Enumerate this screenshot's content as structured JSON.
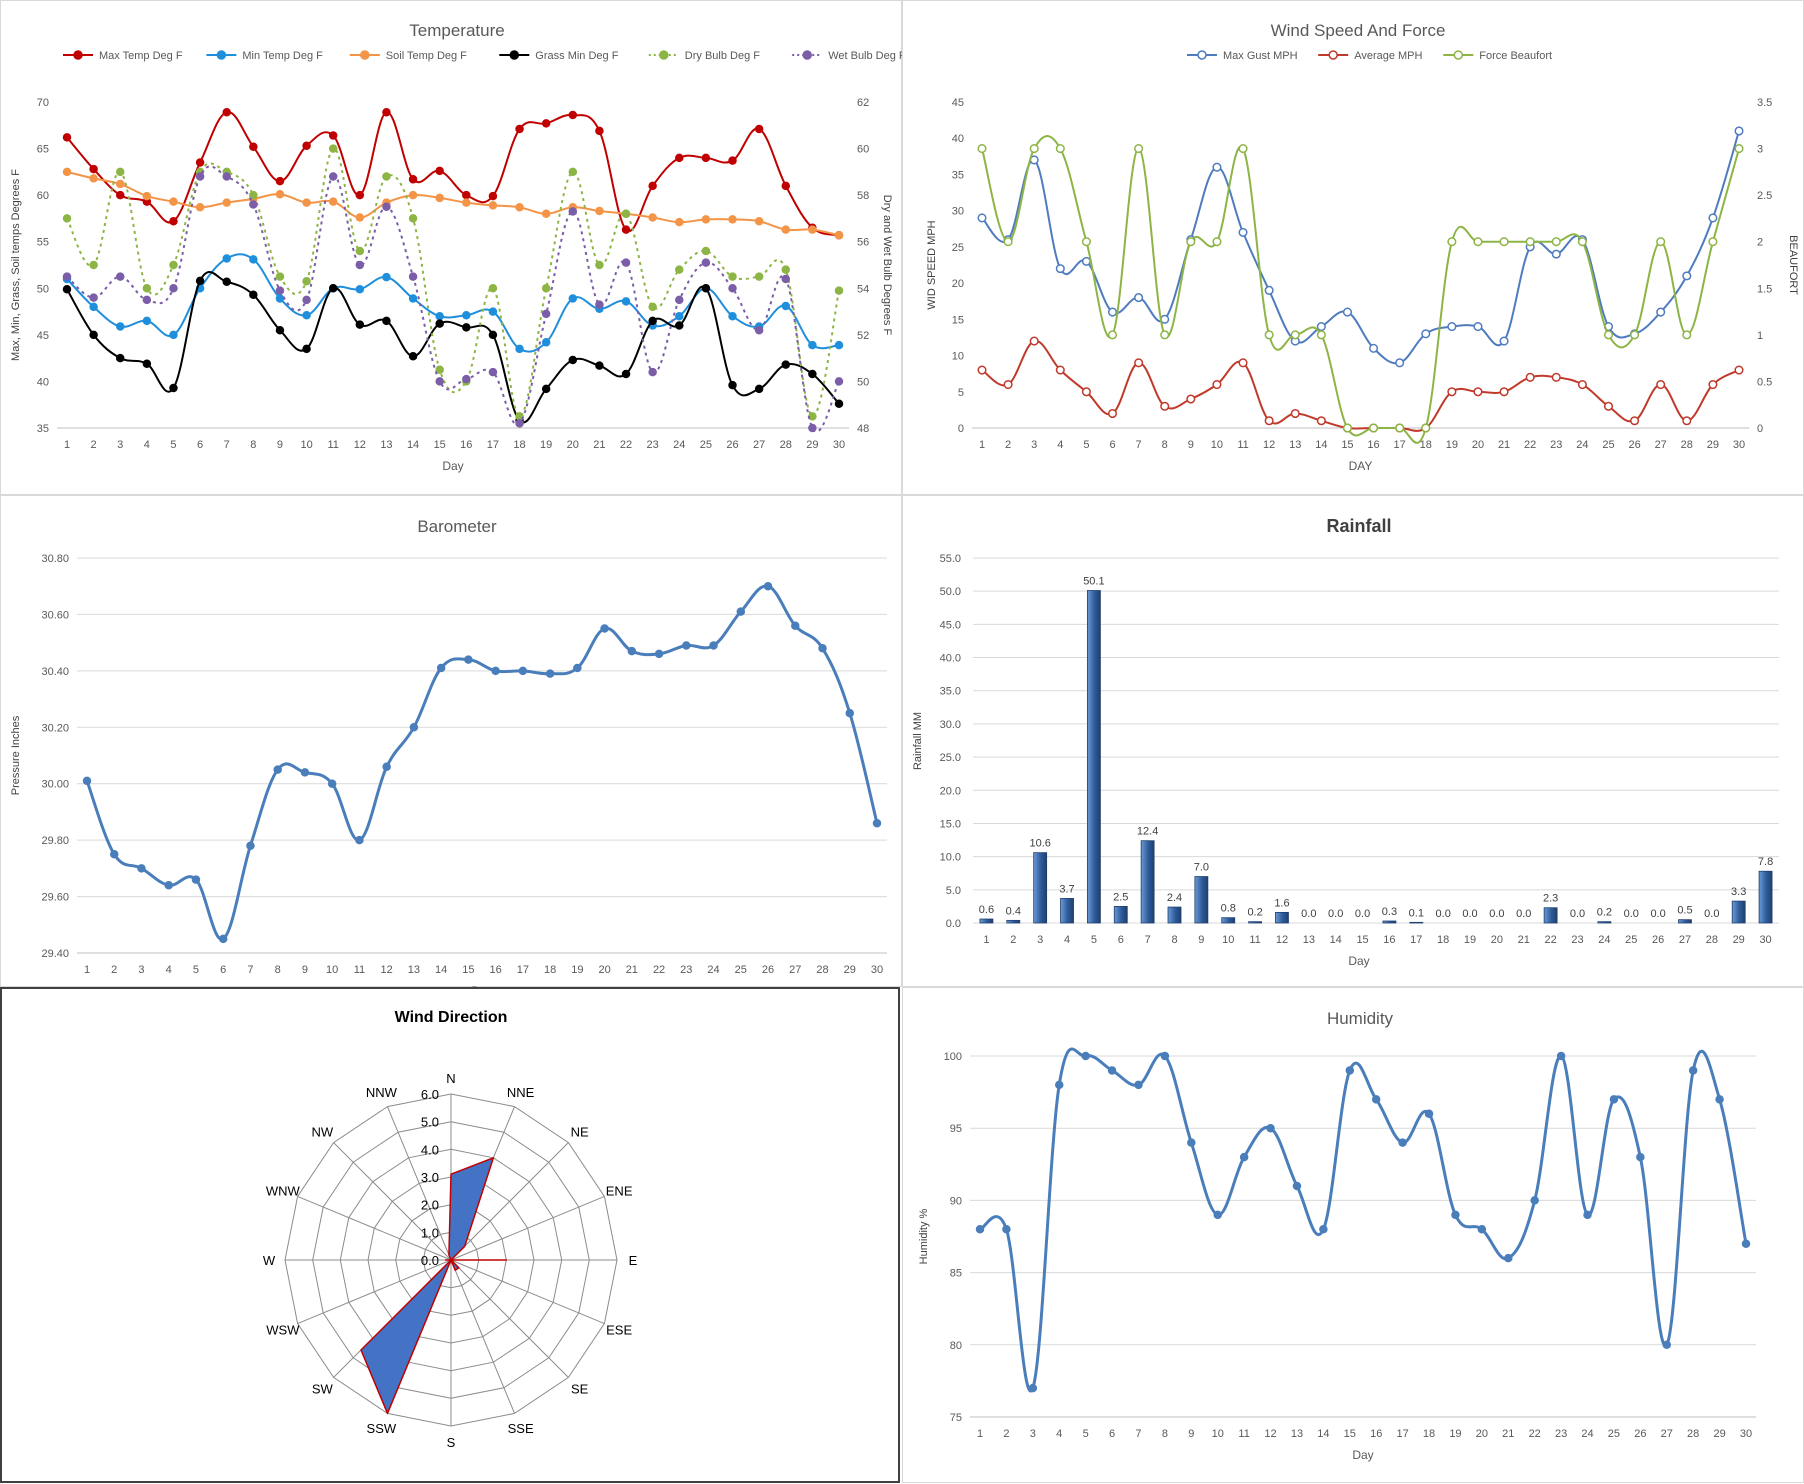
{
  "colors": {
    "max_temp": "#c00000",
    "min_temp": "#1f8fdc",
    "soil_temp": "#f39447",
    "grass_min": "#000000",
    "dry_bulb": "#8db545",
    "wet_bulb": "#7b5ea7",
    "gust": "#4f7bbf",
    "avg": "#c0392b",
    "beaufort": "#8db545",
    "baro": "#4a7ebb",
    "rain": "#2e5c9a",
    "humidity": "#4a7ebb",
    "rose_fill": "#4472c4",
    "rose_stroke": "#c00000",
    "grid": "#d9d9d9"
  },
  "chart_data": [
    {
      "id": "temperature",
      "type": "line",
      "title": "Temperature",
      "xlabel": "Day",
      "ylabel": "Max, Min, Grass, Soil temps Degrees F",
      "y2label": "Dry and Wet Bulb Degrees F",
      "ylim": [
        35,
        70
      ],
      "y_step": 5,
      "y2lim": [
        48,
        62
      ],
      "y2_step": 2,
      "grid": false,
      "legend": "top",
      "x": [
        1,
        2,
        3,
        4,
        5,
        6,
        7,
        8,
        9,
        10,
        11,
        12,
        13,
        14,
        15,
        16,
        17,
        18,
        19,
        20,
        21,
        22,
        23,
        24,
        25,
        26,
        27,
        28,
        29,
        30
      ],
      "series": [
        {
          "name": "Max Temp Deg F",
          "axis": "y",
          "style": "solid",
          "color_key": "max_temp",
          "values": [
            66.2,
            62.8,
            60.0,
            59.3,
            57.2,
            63.5,
            68.9,
            65.2,
            61.5,
            65.3,
            66.4,
            60.0,
            68.9,
            61.7,
            62.6,
            60.0,
            59.9,
            67.1,
            67.7,
            68.6,
            66.9,
            56.3,
            61.0,
            64.0,
            64.0,
            63.7,
            67.1,
            61.0,
            56.5,
            55.7
          ]
        },
        {
          "name": "Min Temp Deg F",
          "axis": "y",
          "style": "solid",
          "color_key": "min_temp",
          "values": [
            51.0,
            48.0,
            45.9,
            46.5,
            45.0,
            50.0,
            53.2,
            53.1,
            48.9,
            47.1,
            50.0,
            49.9,
            51.2,
            48.9,
            47.0,
            47.1,
            47.5,
            43.5,
            44.2,
            48.9,
            47.8,
            48.6,
            46.0,
            47.0,
            50.0,
            47.0,
            45.9,
            48.1,
            43.9,
            43.9
          ]
        },
        {
          "name": "Soil Temp Deg F",
          "axis": "y",
          "style": "solid",
          "color_key": "soil_temp",
          "values": [
            62.5,
            61.8,
            61.2,
            59.9,
            59.3,
            58.7,
            59.2,
            59.6,
            60.1,
            59.2,
            59.3,
            57.6,
            59.2,
            60.0,
            59.7,
            59.2,
            58.9,
            58.7,
            58.0,
            58.7,
            58.3,
            58.0,
            57.6,
            57.1,
            57.4,
            57.4,
            57.2,
            56.3,
            56.3,
            55.7
          ]
        },
        {
          "name": "Grass Min Deg F",
          "axis": "y",
          "style": "solid",
          "color_key": "grass_min",
          "values": [
            49.9,
            45.0,
            42.5,
            41.9,
            39.3,
            50.8,
            50.7,
            49.3,
            45.5,
            43.5,
            50.0,
            46.1,
            46.5,
            42.7,
            46.2,
            45.8,
            45.0,
            35.8,
            39.2,
            42.3,
            41.7,
            40.8,
            46.5,
            46.0,
            50.0,
            39.6,
            39.2,
            41.8,
            40.8,
            37.6
          ]
        },
        {
          "name": "Dry Bulb Deg F",
          "axis": "y2",
          "style": "dotted",
          "color_key": "dry_bulb",
          "values": [
            57.0,
            55.0,
            59.0,
            54.0,
            55.0,
            59.0,
            59.0,
            58.0,
            54.5,
            54.3,
            60.0,
            55.6,
            58.8,
            57.0,
            50.5,
            50.0,
            54.0,
            48.5,
            54.0,
            59.0,
            55.0,
            57.2,
            53.2,
            54.8,
            55.6,
            54.5,
            54.5,
            54.8,
            48.5,
            53.9
          ]
        },
        {
          "name": "Wet Bulb Deg F",
          "axis": "y2",
          "style": "dotted",
          "color_key": "wet_bulb",
          "values": [
            54.5,
            53.6,
            54.5,
            53.5,
            54.0,
            58.8,
            58.8,
            57.6,
            53.9,
            53.5,
            58.8,
            55.0,
            57.5,
            54.5,
            50.0,
            50.1,
            50.4,
            48.2,
            52.9,
            57.3,
            53.3,
            55.1,
            50.4,
            53.5,
            55.1,
            54.0,
            52.2,
            54.4,
            48.0,
            50.0
          ]
        }
      ]
    },
    {
      "id": "wind",
      "type": "line",
      "title": "Wind Speed And Force",
      "xlabel": "DAY",
      "ylabel": "WID SPEED MPH",
      "y2label": "BEAUFORT",
      "ylim": [
        0,
        45
      ],
      "y_step": 5,
      "y2lim": [
        0,
        3.5
      ],
      "y2_step": 0.5,
      "grid": false,
      "legend": "top",
      "x": [
        1,
        2,
        3,
        4,
        5,
        6,
        7,
        8,
        9,
        10,
        11,
        12,
        13,
        14,
        15,
        16,
        17,
        18,
        19,
        20,
        21,
        22,
        23,
        24,
        25,
        26,
        27,
        28,
        29,
        30
      ],
      "series": [
        {
          "name": "Max Gust MPH",
          "axis": "y",
          "color_key": "gust",
          "values": [
            29,
            26,
            37,
            22,
            23,
            16,
            18,
            15,
            26,
            36,
            27,
            19,
            12,
            14,
            16,
            11,
            9,
            13,
            14,
            14,
            12,
            25,
            24,
            26,
            14,
            13,
            16,
            21,
            29,
            41
          ]
        },
        {
          "name": "Average MPH",
          "axis": "y",
          "color_key": "avg",
          "values": [
            8,
            6,
            12,
            8,
            5,
            2,
            9,
            3,
            4,
            6,
            9,
            1,
            2,
            1,
            0,
            0,
            0,
            0,
            5,
            5,
            5,
            7,
            7,
            6,
            3,
            1,
            6,
            1,
            6,
            8
          ]
        },
        {
          "name": "Force Beaufort",
          "axis": "y2",
          "color_key": "beaufort",
          "values": [
            3,
            2,
            3,
            3,
            2,
            1,
            3,
            1,
            2,
            2,
            3,
            1,
            1,
            1,
            0,
            0,
            0,
            0,
            2,
            2,
            2,
            2,
            2,
            2,
            1,
            1,
            2,
            1,
            2,
            3
          ]
        }
      ]
    },
    {
      "id": "barometer",
      "type": "line",
      "title": "Barometer",
      "xlabel": "Day",
      "ylabel": "Pressure Inches",
      "ylim": [
        29.4,
        30.8
      ],
      "y_step": 0.2,
      "y_decimals": 2,
      "grid": true,
      "x": [
        1,
        2,
        3,
        4,
        5,
        6,
        7,
        8,
        9,
        10,
        11,
        12,
        13,
        14,
        15,
        16,
        17,
        18,
        19,
        20,
        21,
        22,
        23,
        24,
        25,
        26,
        27,
        28,
        29,
        30
      ],
      "series": [
        {
          "name": "Pressure",
          "color_key": "baro",
          "values": [
            30.01,
            29.75,
            29.7,
            29.64,
            29.66,
            29.45,
            29.78,
            30.05,
            30.04,
            30.0,
            29.8,
            30.06,
            30.2,
            30.41,
            30.44,
            30.4,
            30.4,
            30.39,
            30.41,
            30.55,
            30.47,
            30.46,
            30.49,
            30.49,
            30.61,
            30.7,
            30.56,
            30.48,
            30.25,
            29.86
          ]
        }
      ]
    },
    {
      "id": "rainfall",
      "type": "bar",
      "title": "Rainfall",
      "xlabel": "Day",
      "ylabel": "Rainfall MM",
      "ylim": [
        0,
        55
      ],
      "y_step": 5,
      "y_decimals": 1,
      "grid": true,
      "categories": [
        "1",
        "2",
        "3",
        "4",
        "5",
        "6",
        "7",
        "8",
        "9",
        "10",
        "11",
        "12",
        "13",
        "14",
        "15",
        "16",
        "17",
        "18",
        "19",
        "20",
        "21",
        "22",
        "23",
        "24",
        "25",
        "26",
        "27",
        "28",
        "29",
        "30"
      ],
      "values": [
        0.6,
        0.4,
        10.6,
        3.7,
        50.1,
        2.5,
        12.4,
        2.4,
        7.0,
        0.8,
        0.2,
        1.6,
        0.0,
        0.0,
        0.0,
        0.3,
        0.1,
        0.0,
        0.0,
        0.0,
        0.0,
        2.3,
        0.0,
        0.2,
        0.0,
        0.0,
        0.5,
        0.0,
        3.3,
        7.8
      ],
      "data_labels": [
        "0.6",
        "0.4",
        "10.6",
        "3.7",
        "50.1",
        "2.5",
        "12.4",
        "2.4",
        "7.0",
        "0.8",
        "0.2",
        "1.6",
        "0.0",
        "0.0",
        "0.0",
        "0.3",
        "0.1",
        "0.0",
        "0.0",
        "0.0",
        "0.0",
        "2.3",
        "0.0",
        "0.2",
        "0.0",
        "0.0",
        "0.5",
        "0.0",
        "3.3",
        "7.8"
      ]
    },
    {
      "id": "wind_direction",
      "type": "radar",
      "title": "Wind Direction",
      "rlim": [
        0,
        6
      ],
      "r_step": 1,
      "r_decimals": 1,
      "categories": [
        "N",
        "NNE",
        "NE",
        "ENE",
        "E",
        "ESE",
        "SE",
        "SSE",
        "S",
        "SSW",
        "SW",
        "WSW",
        "W",
        "WNW",
        "NW",
        "NNW"
      ],
      "values": [
        3.1,
        4.0,
        0.7,
        0.0,
        2.0,
        0.0,
        0.4,
        0.4,
        0.0,
        6.0,
        4.6,
        0.0,
        0.2,
        0.0,
        0.0,
        0.2
      ]
    },
    {
      "id": "humidity",
      "type": "line",
      "title": "Humidity",
      "xlabel": "Day",
      "ylabel": "Humidity %",
      "ylim": [
        75,
        100
      ],
      "y_step": 5,
      "grid": true,
      "x": [
        1,
        2,
        3,
        4,
        5,
        6,
        7,
        8,
        9,
        10,
        11,
        12,
        13,
        14,
        15,
        16,
        17,
        18,
        19,
        20,
        21,
        22,
        23,
        24,
        25,
        26,
        27,
        28,
        29,
        30
      ],
      "series": [
        {
          "name": "Humidity",
          "color_key": "humidity",
          "values": [
            88,
            88,
            77,
            98,
            100,
            99,
            98,
            100,
            94,
            89,
            93,
            95,
            91,
            88,
            99,
            97,
            94,
            96,
            89,
            88,
            86,
            90,
            100,
            89,
            97,
            93,
            80,
            99,
            97,
            87
          ]
        }
      ]
    }
  ]
}
